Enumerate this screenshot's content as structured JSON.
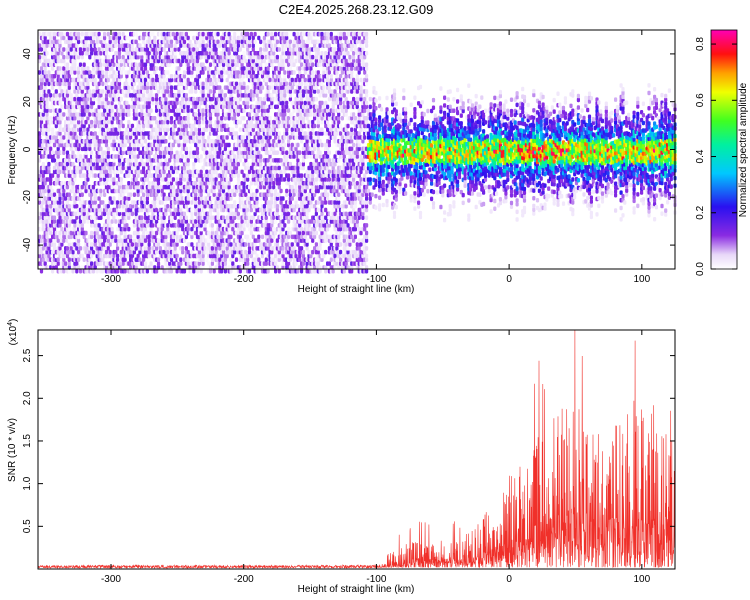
{
  "title": "C2E4.2025.268.23.12.G09",
  "chart_data": [
    {
      "type": "heatmap",
      "panel": "top",
      "xlabel": "Height of straight line (km)",
      "ylabel": "Frequency (Hz)",
      "xlim": [
        -355,
        125
      ],
      "ylim": [
        -50,
        50
      ],
      "xticks": [
        -300,
        -200,
        -100,
        0,
        100
      ],
      "yticks": [
        -40,
        -20,
        0,
        20,
        40
      ],
      "xtick_labels": [
        "-300",
        "-200",
        "-100",
        "0",
        "100"
      ],
      "ytick_labels": [
        "-40",
        "-20",
        "0",
        "20",
        "40"
      ],
      "colorbar": {
        "label": "Normalized spectral amplitude",
        "range": [
          0.0,
          0.85
        ],
        "ticks": [
          0.0,
          0.2,
          0.4,
          0.6,
          0.8
        ],
        "tick_labels": [
          "0.0",
          "0.2",
          "0.4",
          "0.6",
          "0.8"
        ],
        "colormap": "rainbow (white-violet-blue-cyan-green-yellow-red-magenta)"
      },
      "regions": [
        {
          "x_range": [
            -355,
            -108
          ],
          "description": "noise",
          "freq_range": [
            -50,
            50
          ],
          "amplitude": [
            0.02,
            0.12
          ]
        },
        {
          "x_range": [
            -108,
            125
          ],
          "description": "signal band",
          "freq_center": 0,
          "freq_spread": 25,
          "amplitude_peak": 0.85,
          "peak_x": [
            5,
            45
          ]
        }
      ]
    },
    {
      "type": "line",
      "panel": "bottom",
      "xlabel": "Height of straight line (km)",
      "ylabel": "SNR (10 * v/v)",
      "y_multiplier": "(x10⁴)",
      "y_multiplier_base": "(x10",
      "y_multiplier_exp": "4",
      "y_multiplier_close": ")",
      "xlim": [
        -355,
        125
      ],
      "ylim": [
        0,
        2.8
      ],
      "xticks": [
        -300,
        -200,
        -100,
        0,
        100
      ],
      "yticks": [
        0.5,
        1.0,
        1.5,
        2.0,
        2.5
      ],
      "xtick_labels": [
        "-300",
        "-200",
        "-100",
        "0",
        "100"
      ],
      "ytick_labels": [
        "0.5",
        "1.0",
        "1.5",
        "2.0",
        "2.5"
      ],
      "series": [
        {
          "name": "SNR",
          "color": "#f0302a",
          "envelope": [
            {
              "x": -355,
              "y": 0.02
            },
            {
              "x": -100,
              "y": 0.03
            },
            {
              "x": -90,
              "y": 0.2
            },
            {
              "x": -70,
              "y": 0.35
            },
            {
              "x": -40,
              "y": 0.35
            },
            {
              "x": -20,
              "y": 0.6
            },
            {
              "x": 0,
              "y": 1.1
            },
            {
              "x": 20,
              "y": 1.5
            },
            {
              "x": 40,
              "y": 2.0
            },
            {
              "x": 60,
              "y": 1.9
            },
            {
              "x": 80,
              "y": 1.8
            },
            {
              "x": 100,
              "y": 2.1
            },
            {
              "x": 115,
              "y": 1.9
            },
            {
              "x": 125,
              "y": 1.4
            }
          ],
          "peak_max": 2.8
        }
      ]
    }
  ]
}
